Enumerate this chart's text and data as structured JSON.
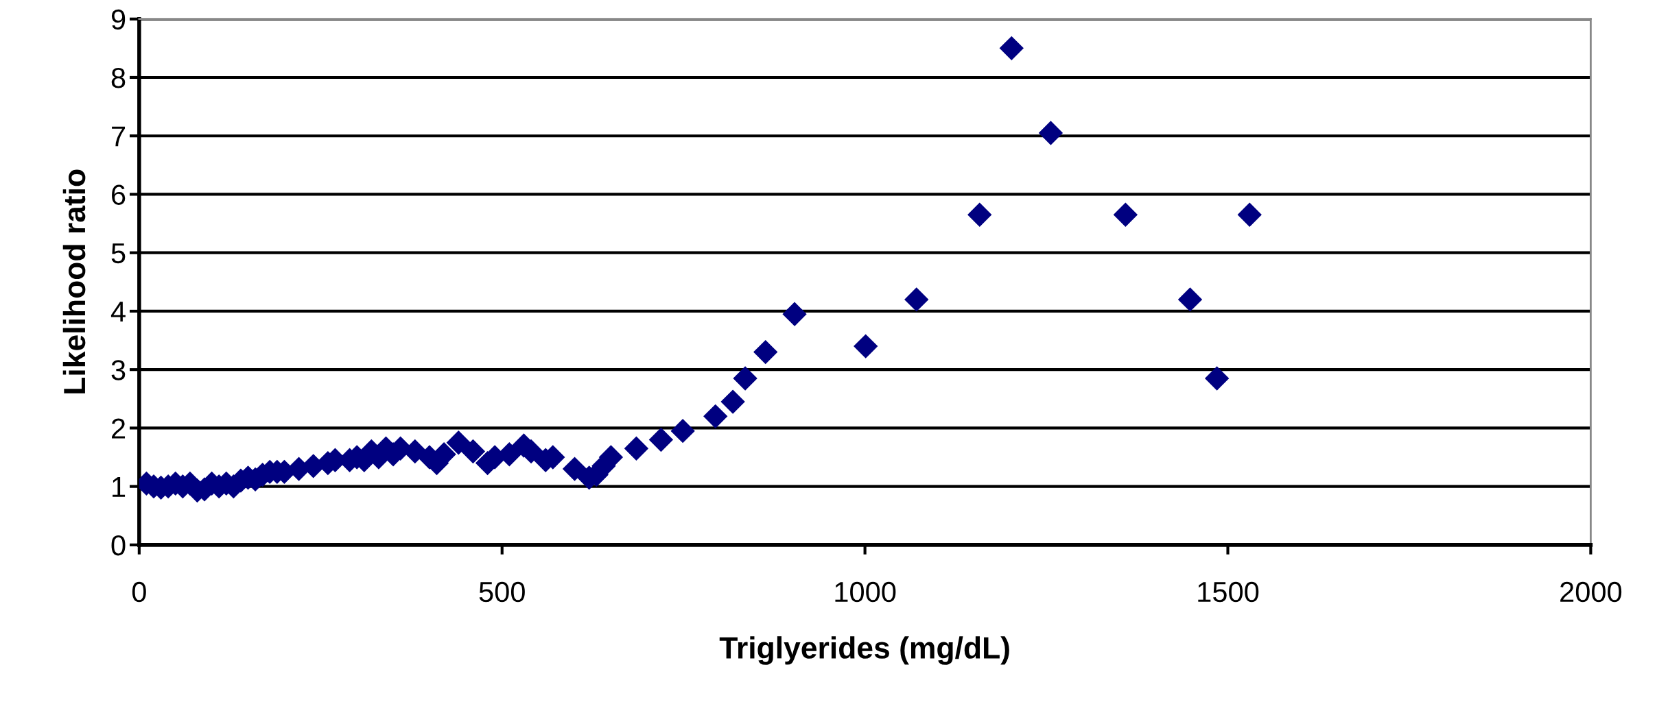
{
  "chart_data": {
    "type": "scatter",
    "xlabel": "Triglyerides (mg/dL)",
    "ylabel": "Likelihood ratio",
    "marker": "diamond",
    "grid": "y",
    "legend": false,
    "xlim": [
      0,
      2000
    ],
    "xticks": [
      0,
      500,
      1000,
      1500,
      2000
    ],
    "ylim": [
      0,
      9
    ],
    "yticks": [
      0,
      1,
      2,
      3,
      4,
      5,
      6,
      7,
      8,
      9
    ],
    "series": [
      {
        "color": "#000080",
        "x": [
          10,
          20,
          30,
          40,
          50,
          60,
          70,
          80,
          90,
          100,
          110,
          120,
          130,
          140,
          150,
          160,
          170,
          180,
          190,
          200,
          220,
          240,
          260,
          270,
          290,
          300,
          310,
          320,
          330,
          340,
          350,
          360,
          380,
          400,
          410,
          420,
          440,
          460,
          480,
          490,
          510,
          530,
          540,
          560,
          570,
          600,
          620,
          630,
          640,
          650,
          685,
          719,
          749,
          794,
          818,
          835,
          863,
          903,
          1001,
          1071,
          1158,
          1202,
          1256,
          1359,
          1448,
          1485,
          1530
        ],
        "values": [
          1.05,
          1.0,
          0.98,
          1.0,
          1.05,
          1.0,
          1.05,
          0.93,
          0.95,
          1.05,
          1.0,
          1.05,
          1.0,
          1.1,
          1.15,
          1.12,
          1.2,
          1.25,
          1.25,
          1.25,
          1.3,
          1.35,
          1.4,
          1.45,
          1.45,
          1.5,
          1.45,
          1.6,
          1.5,
          1.65,
          1.55,
          1.65,
          1.6,
          1.5,
          1.4,
          1.55,
          1.75,
          1.6,
          1.4,
          1.5,
          1.55,
          1.7,
          1.6,
          1.45,
          1.5,
          1.3,
          1.15,
          1.2,
          1.35,
          1.5,
          1.65,
          1.8,
          1.95,
          2.2,
          2.45,
          2.85,
          3.3,
          3.95,
          3.4,
          4.2,
          5.65,
          8.5,
          7.05,
          5.65,
          4.2,
          2.85,
          5.65
        ]
      }
    ]
  }
}
